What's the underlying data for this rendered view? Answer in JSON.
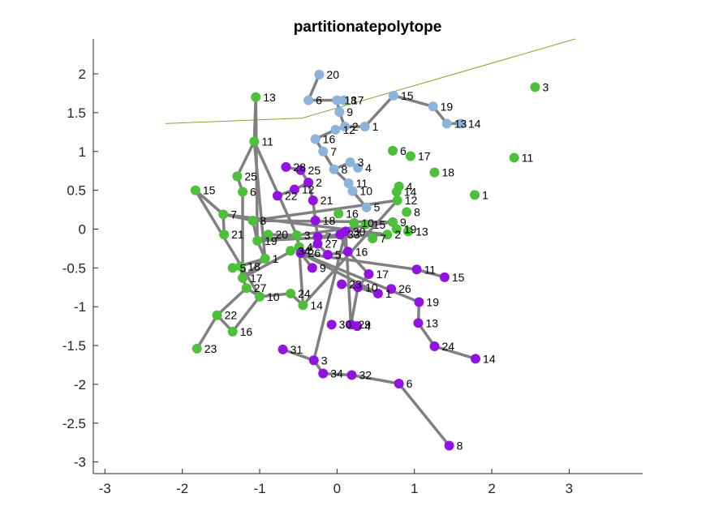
{
  "chart_data": {
    "type": "scatter",
    "title": "partitionatepolytope",
    "xlabel": "",
    "ylabel": "",
    "xlim": [
      -3.15,
      3.95
    ],
    "ylim": [
      -3.15,
      2.45
    ],
    "x_ticks": [
      {
        "value": -3,
        "label": "-3"
      },
      {
        "value": -2,
        "label": "-2"
      },
      {
        "value": -1,
        "label": "-1"
      },
      {
        "value": 0,
        "label": "0"
      },
      {
        "value": 1,
        "label": "1"
      },
      {
        "value": 2,
        "label": "2"
      },
      {
        "value": 3,
        "label": "3"
      }
    ],
    "y_ticks": [
      {
        "value": 2,
        "label": "2"
      },
      {
        "value": 1.5,
        "label": "1.5"
      },
      {
        "value": 1,
        "label": "1"
      },
      {
        "value": 0.5,
        "label": "0.5"
      },
      {
        "value": 0,
        "label": "0"
      },
      {
        "value": -0.5,
        "label": "-0.5"
      },
      {
        "value": -1,
        "label": "-1"
      },
      {
        "value": -1.5,
        "label": "-1.5"
      },
      {
        "value": -2,
        "label": "-2"
      },
      {
        "value": -2.5,
        "label": "-2.5"
      },
      {
        "value": -3,
        "label": "-3"
      }
    ],
    "grid": false,
    "edge_color": "#808080",
    "separator_line": {
      "color": "#77AC30",
      "points": [
        [
          -2.22,
          1.36
        ],
        [
          -0.45,
          1.43
        ],
        [
          3.08,
          2.45
        ]
      ]
    },
    "series": [
      {
        "color": "#8CB4DA",
        "points": [
          {
            "label": "20",
            "x": -0.23,
            "y": 1.99
          },
          {
            "label": "6",
            "x": -0.37,
            "y": 1.66
          },
          {
            "label": "18",
            "x": 0.0,
            "y": 1.66
          },
          {
            "label": "17",
            "x": 0.09,
            "y": 1.66
          },
          {
            "label": "9",
            "x": 0.03,
            "y": 1.51
          },
          {
            "label": "2",
            "x": 0.1,
            "y": 1.32
          },
          {
            "label": "12",
            "x": -0.02,
            "y": 1.28
          },
          {
            "label": "1",
            "x": 0.36,
            "y": 1.32
          },
          {
            "label": "16",
            "x": -0.28,
            "y": 1.16
          },
          {
            "label": "7",
            "x": -0.18,
            "y": 1.0
          },
          {
            "label": "8",
            "x": -0.04,
            "y": 0.77
          },
          {
            "label": "3",
            "x": 0.17,
            "y": 0.86
          },
          {
            "label": "4",
            "x": 0.27,
            "y": 0.79
          },
          {
            "label": "11",
            "x": 0.15,
            "y": 0.59
          },
          {
            "label": "10",
            "x": 0.2,
            "y": 0.49
          },
          {
            "label": "5",
            "x": 0.38,
            "y": 0.28
          },
          {
            "label": "15",
            "x": 0.73,
            "y": 1.72
          },
          {
            "label": "19",
            "x": 1.24,
            "y": 1.58
          },
          {
            "label": "13",
            "x": 1.42,
            "y": 1.36
          },
          {
            "label": "14",
            "x": 1.6,
            "y": 1.36
          }
        ],
        "edges": [
          [
            "20",
            "6"
          ],
          [
            "6",
            "18"
          ],
          [
            "18",
            "17"
          ],
          [
            "18",
            "9"
          ],
          [
            "9",
            "2"
          ],
          [
            "2",
            "12"
          ],
          [
            "2",
            "1"
          ],
          [
            "12",
            "16"
          ],
          [
            "16",
            "7"
          ],
          [
            "7",
            "8"
          ],
          [
            "8",
            "3"
          ],
          [
            "3",
            "4"
          ],
          [
            "8",
            "11"
          ],
          [
            "11",
            "10"
          ],
          [
            "10",
            "5"
          ],
          [
            "1",
            "15"
          ],
          [
            "15",
            "19"
          ],
          [
            "19",
            "13"
          ],
          [
            "13",
            "14"
          ]
        ]
      },
      {
        "color": "#4DBF3B",
        "points": [
          {
            "label": "13",
            "x": -1.05,
            "y": 1.7
          },
          {
            "label": "11",
            "x": -1.07,
            "y": 1.13
          },
          {
            "label": "25",
            "x": -1.29,
            "y": 0.68
          },
          {
            "label": "6",
            "x": -1.22,
            "y": 0.48
          },
          {
            "label": "15",
            "x": -1.83,
            "y": 0.5
          },
          {
            "label": "7",
            "x": -1.47,
            "y": 0.19
          },
          {
            "label": "8",
            "x": -1.09,
            "y": 0.11
          },
          {
            "label": "21",
            "x": -1.46,
            "y": -0.07
          },
          {
            "label": "19",
            "x": -1.03,
            "y": -0.15
          },
          {
            "label": "20",
            "x": -0.89,
            "y": -0.07
          },
          {
            "label": "3",
            "x": -0.52,
            "y": -0.08
          },
          {
            "label": "4",
            "x": -0.49,
            "y": -0.23
          },
          {
            "label": "34",
            "x": -0.6,
            "y": -0.28
          },
          {
            "label": "1",
            "x": -0.93,
            "y": -0.38
          },
          {
            "label": "5",
            "x": -1.35,
            "y": -0.5
          },
          {
            "label": "18",
            "x": -1.25,
            "y": -0.48
          },
          {
            "label": "17",
            "x": -1.22,
            "y": -0.63
          },
          {
            "label": "27",
            "x": -1.17,
            "y": -0.76
          },
          {
            "label": "10",
            "x": -1.0,
            "y": -0.87
          },
          {
            "label": "24",
            "x": -0.6,
            "y": -0.83
          },
          {
            "label": "14",
            "x": -0.44,
            "y": -0.98
          },
          {
            "label": "22",
            "x": -1.55,
            "y": -1.11
          },
          {
            "label": "16",
            "x": -1.35,
            "y": -1.32
          },
          {
            "label": "23",
            "x": -1.81,
            "y": -1.54
          },
          {
            "label": "3",
            "x": 2.56,
            "y": 1.83
          },
          {
            "label": "11",
            "x": 2.29,
            "y": 0.92
          },
          {
            "label": "1",
            "x": 1.78,
            "y": 0.44
          },
          {
            "label": "18",
            "x": 1.26,
            "y": 0.73
          },
          {
            "label": "17",
            "x": 0.95,
            "y": 0.94
          },
          {
            "label": "6",
            "x": 0.72,
            "y": 1.01
          },
          {
            "label": "4",
            "x": 0.8,
            "y": 0.55
          },
          {
            "label": "14",
            "x": 0.77,
            "y": 0.48
          },
          {
            "label": "12",
            "x": 0.78,
            "y": 0.37
          },
          {
            "label": "8",
            "x": 0.9,
            "y": 0.22
          },
          {
            "label": "9",
            "x": 0.72,
            "y": 0.09
          },
          {
            "label": "19",
            "x": 0.77,
            "y": 0.0
          },
          {
            "label": "13",
            "x": 0.92,
            "y": -0.03
          },
          {
            "label": "2",
            "x": 0.65,
            "y": -0.07
          },
          {
            "label": "7",
            "x": 0.46,
            "y": -0.12
          },
          {
            "label": "16",
            "x": 0.02,
            "y": 0.2
          },
          {
            "label": "10",
            "x": 0.22,
            "y": 0.08
          },
          {
            "label": "15",
            "x": 0.37,
            "y": 0.06
          }
        ],
        "edges": [
          [
            "13",
            "11"
          ],
          [
            "11",
            "25"
          ],
          [
            "25",
            "6"
          ],
          [
            "15",
            "7"
          ],
          [
            "7",
            "8"
          ],
          [
            "7",
            "21"
          ],
          [
            "8",
            "19"
          ],
          [
            "19",
            "20"
          ],
          [
            "20",
            "3"
          ],
          [
            "3",
            "4"
          ],
          [
            "4",
            "34"
          ],
          [
            "19",
            "1"
          ],
          [
            "1",
            "5"
          ],
          [
            "1",
            "17"
          ],
          [
            "17",
            "27"
          ],
          [
            "27",
            "10"
          ],
          [
            "10",
            "24"
          ],
          [
            "24",
            "14"
          ],
          [
            "27",
            "22"
          ],
          [
            "22",
            "16"
          ],
          [
            "22",
            "23"
          ],
          [
            "3",
            "11"
          ],
          [
            "11",
            "1"
          ],
          [
            "1",
            "18"
          ],
          [
            "18",
            "17"
          ],
          [
            "17",
            "6"
          ],
          [
            "17",
            "4"
          ],
          [
            "4",
            "14"
          ],
          [
            "14",
            "12"
          ],
          [
            "12",
            "8"
          ],
          [
            "8",
            "9"
          ],
          [
            "9",
            "19"
          ],
          [
            "19",
            "13"
          ],
          [
            "19",
            "2"
          ],
          [
            "2",
            "7"
          ],
          [
            "7",
            "15"
          ],
          [
            "15",
            "10"
          ],
          [
            "10",
            "16"
          ]
        ]
      },
      {
        "color": "#9013E0",
        "points": [
          {
            "label": "28",
            "x": -0.66,
            "y": 0.8
          },
          {
            "label": "25",
            "x": -0.47,
            "y": 0.76
          },
          {
            "label": "2",
            "x": -0.37,
            "y": 0.6
          },
          {
            "label": "12",
            "x": -0.55,
            "y": 0.51
          },
          {
            "label": "22",
            "x": -0.77,
            "y": 0.43
          },
          {
            "label": "21",
            "x": -0.31,
            "y": 0.37
          },
          {
            "label": "18",
            "x": -0.28,
            "y": 0.11
          },
          {
            "label": "7",
            "x": -0.25,
            "y": -0.1
          },
          {
            "label": "27",
            "x": -0.25,
            "y": -0.19
          },
          {
            "label": "33",
            "x": 0.04,
            "y": -0.07
          },
          {
            "label": "30",
            "x": 0.11,
            "y": -0.03
          },
          {
            "label": "26",
            "x": -0.47,
            "y": -0.31
          },
          {
            "label": "5",
            "x": -0.12,
            "y": -0.33
          },
          {
            "label": "16",
            "x": 0.14,
            "y": -0.29
          },
          {
            "label": "9",
            "x": -0.32,
            "y": -0.5
          },
          {
            "label": "17",
            "x": 0.41,
            "y": -0.58
          },
          {
            "label": "23",
            "x": 0.06,
            "y": -0.71
          },
          {
            "label": "10",
            "x": 0.27,
            "y": -0.75
          },
          {
            "label": "1",
            "x": 0.53,
            "y": -0.83
          },
          {
            "label": "26",
            "x": 0.7,
            "y": -0.77
          },
          {
            "label": "11",
            "x": 1.03,
            "y": -0.52
          },
          {
            "label": "15",
            "x": 1.39,
            "y": -0.62
          },
          {
            "label": "19",
            "x": 1.06,
            "y": -0.94
          },
          {
            "label": "13",
            "x": 1.05,
            "y": -1.21
          },
          {
            "label": "24",
            "x": 1.26,
            "y": -1.51
          },
          {
            "label": "14",
            "x": 1.79,
            "y": -1.67
          },
          {
            "label": "30",
            "x": -0.07,
            "y": -1.23
          },
          {
            "label": "29",
            "x": 0.18,
            "y": -1.23
          },
          {
            "label": "4",
            "x": 0.26,
            "y": -1.25
          },
          {
            "label": "31",
            "x": -0.7,
            "y": -1.55
          },
          {
            "label": "3",
            "x": -0.3,
            "y": -1.69
          },
          {
            "label": "34",
            "x": -0.18,
            "y": -1.86
          },
          {
            "label": "32",
            "x": 0.19,
            "y": -1.88
          },
          {
            "label": "6",
            "x": 0.8,
            "y": -1.99
          },
          {
            "label": "8",
            "x": 1.45,
            "y": -2.79
          }
        ],
        "edges": [
          [
            "28",
            "25"
          ],
          [
            "25",
            "2"
          ],
          [
            "2",
            "12"
          ],
          [
            "12",
            "22"
          ],
          [
            "2",
            "21"
          ],
          [
            "21",
            "18"
          ],
          [
            "18",
            "7"
          ],
          [
            "7",
            "27"
          ],
          [
            "7",
            "33"
          ],
          [
            "33",
            "30"
          ],
          [
            "27",
            "26"
          ],
          [
            "27",
            "5"
          ],
          [
            "5",
            "16"
          ],
          [
            "33",
            "16"
          ],
          [
            "26",
            "9"
          ],
          [
            "16",
            "17"
          ],
          [
            "17",
            "10"
          ],
          [
            "23",
            "10"
          ],
          [
            "10",
            "1"
          ],
          [
            "1",
            "26"
          ],
          [
            "26",
            "11"
          ],
          [
            "11",
            "15"
          ],
          [
            "26",
            "19"
          ],
          [
            "19",
            "13"
          ],
          [
            "13",
            "24"
          ],
          [
            "24",
            "14"
          ],
          [
            "10",
            "29"
          ],
          [
            "29",
            "30"
          ],
          [
            "29",
            "4"
          ],
          [
            "30",
            "3"
          ],
          [
            "31",
            "3"
          ],
          [
            "3",
            "34"
          ],
          [
            "34",
            "32"
          ],
          [
            "32",
            "6"
          ],
          [
            "6",
            "8"
          ]
        ]
      }
    ]
  }
}
